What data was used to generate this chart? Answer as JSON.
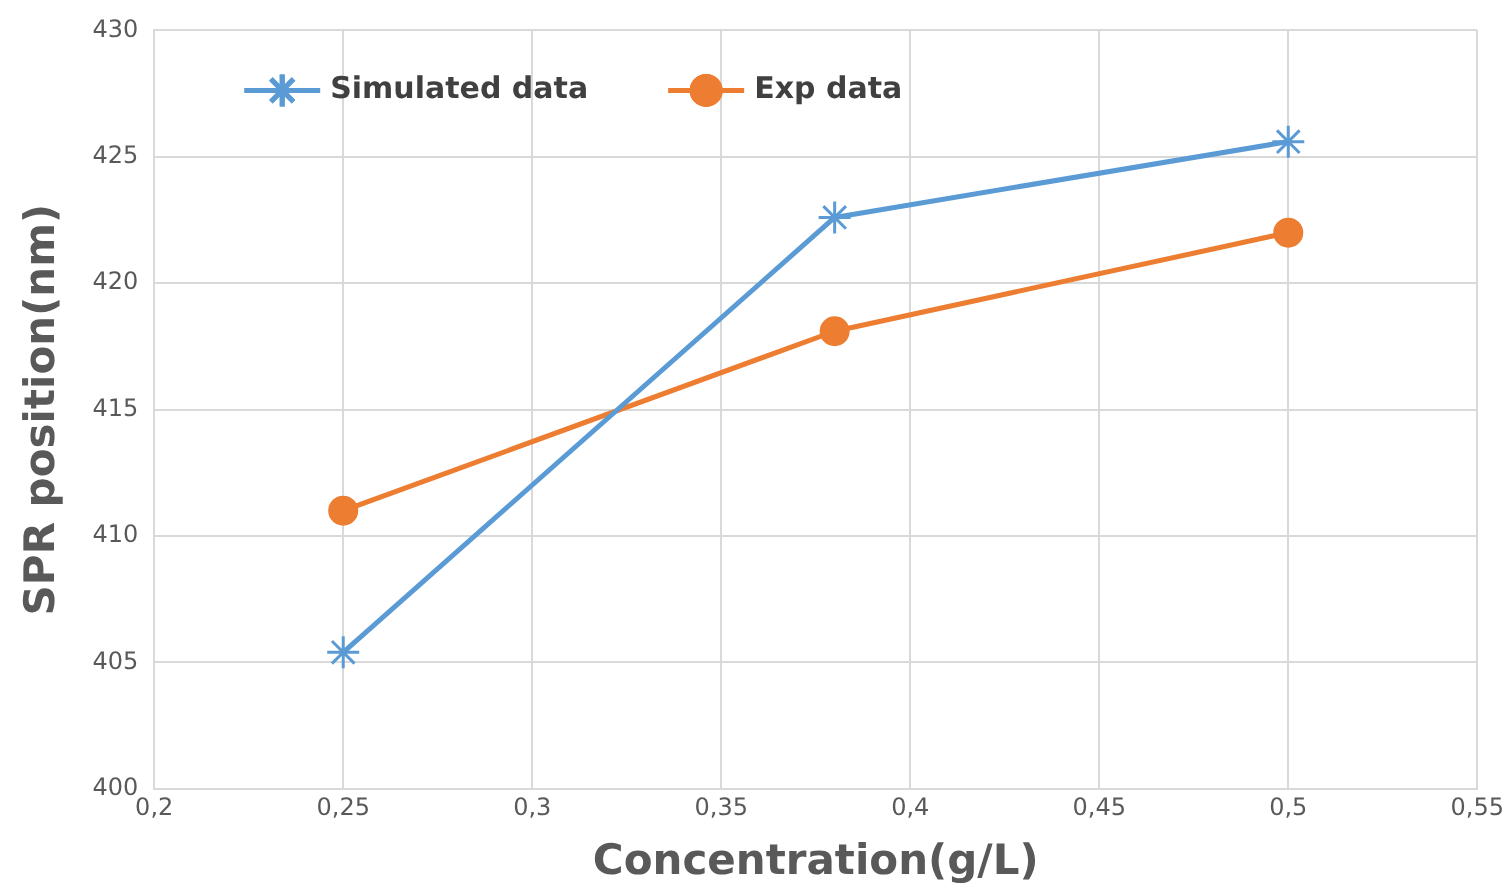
{
  "chart_data": {
    "type": "line",
    "xlabel": "Concentration(g/L)",
    "ylabel": "SPR position(nm)",
    "x": [
      0.25,
      0.38,
      0.5
    ],
    "series": [
      {
        "name": "Simulated data",
        "color": "#5b9bd5",
        "values": [
          405.4,
          422.6,
          425.6
        ],
        "marker": "cross"
      },
      {
        "name": "Exp data",
        "color": "#ed7d31",
        "values": [
          411.0,
          418.1,
          422.0
        ],
        "marker": "circle"
      }
    ],
    "xlim": [
      0.2,
      0.55
    ],
    "xticks": [
      {
        "value": 0.2,
        "label": "0,2"
      },
      {
        "value": 0.25,
        "label": "0,25"
      },
      {
        "value": 0.3,
        "label": "0,3"
      },
      {
        "value": 0.35,
        "label": "0,35"
      },
      {
        "value": 0.4,
        "label": "0,4"
      },
      {
        "value": 0.45,
        "label": "0,45"
      },
      {
        "value": 0.5,
        "label": "0,5"
      },
      {
        "value": 0.55,
        "label": "0,55"
      }
    ],
    "ylim": [
      400,
      430
    ],
    "yticks": [
      400,
      405,
      410,
      415,
      420,
      425,
      430
    ],
    "grid": true,
    "legend": "top left",
    "line_style": "solid"
  }
}
